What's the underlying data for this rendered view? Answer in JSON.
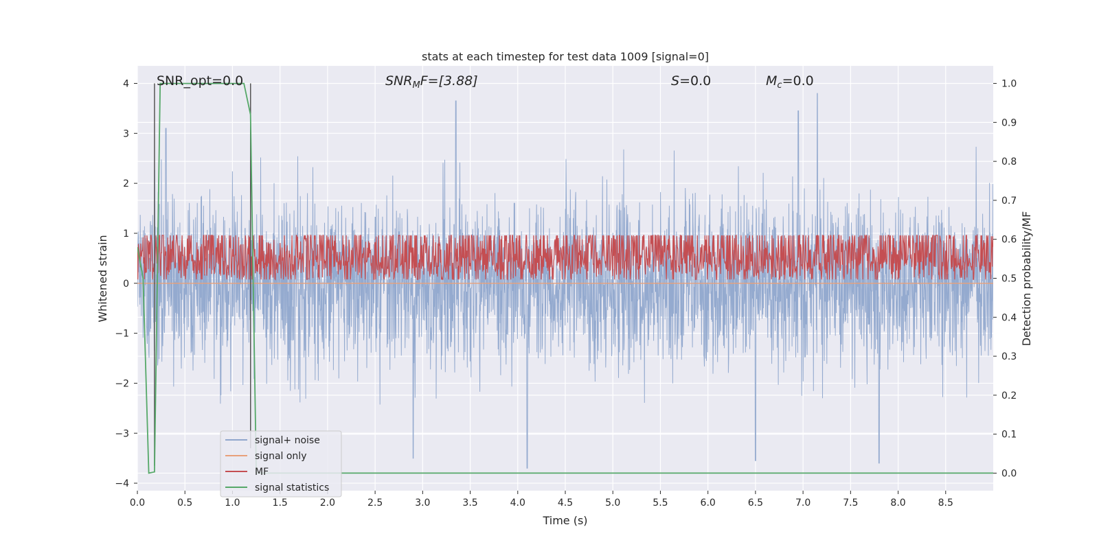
{
  "chart_data": {
    "type": "line",
    "title": "stats at each timestep for test data 1009 [signal=0]",
    "xlabel": "Time (s)",
    "ylabel_left": "Whitened strain",
    "ylabel_right": "Detection probability/MF",
    "xlim": [
      0.0,
      9.0
    ],
    "ylim_left": [
      -4.15,
      4.35
    ],
    "ylim_right": [
      -0.045,
      1.045
    ],
    "x_ticks": [
      "0.0",
      "0.5",
      "1.0",
      "1.5",
      "2.0",
      "2.5",
      "3.0",
      "3.5",
      "4.0",
      "4.5",
      "5.0",
      "5.5",
      "6.0",
      "6.5",
      "7.0",
      "7.5",
      "8.0",
      "8.5"
    ],
    "y_left_ticks": [
      "−4",
      "−3",
      "−2",
      "−1",
      "0",
      "1",
      "2",
      "3",
      "4"
    ],
    "y_right_ticks": [
      "0.0",
      "0.1",
      "0.2",
      "0.3",
      "0.4",
      "0.5",
      "0.6",
      "0.7",
      "0.8",
      "0.9",
      "1.0"
    ],
    "grid": true,
    "legend_position": "lower-left",
    "annotations": {
      "snr_opt": "SNR_opt=0.0",
      "snr_mf_base": "SNR",
      "snr_mf_sub": "M",
      "snr_mf_rest": "F=[3.88]",
      "s_base": "S",
      "s_rest": "=0.0",
      "mc_base": "M",
      "mc_sub": "c",
      "mc_rest": "=0.0"
    },
    "series": [
      {
        "name": "signal+ noise",
        "axis": "left",
        "color": "#8fa6cc",
        "style": "noise",
        "sigma": 0.85,
        "peaks": [
          [
            3.35,
            3.65
          ],
          [
            6.95,
            3.45
          ],
          [
            7.15,
            3.8
          ],
          [
            0.3,
            3.1
          ],
          [
            4.1,
            -3.7
          ],
          [
            7.8,
            -3.6
          ],
          [
            6.5,
            -3.55
          ],
          [
            2.9,
            -3.5
          ]
        ]
      },
      {
        "name": "signal only",
        "axis": "left",
        "color": "#e8a07a",
        "values_x": [
          0.0,
          9.0
        ],
        "values_y": [
          0.0,
          0.0
        ]
      },
      {
        "name": "MF",
        "axis": "right",
        "color": "#c44e52",
        "style": "noise",
        "mean": 0.55,
        "spread": 0.06,
        "min": 0.497,
        "max": 0.61
      },
      {
        "name": "signal statistics",
        "axis": "right",
        "color": "#55a868",
        "values_x": [
          0.0,
          0.06,
          0.12,
          0.18,
          0.24,
          0.6,
          1.0,
          1.12,
          1.19,
          1.25,
          9.0
        ],
        "values_y": [
          0.58,
          0.5,
          0.0,
          0.003,
          1.0,
          1.0,
          1.0,
          1.0,
          0.92,
          0.0,
          0.0
        ]
      }
    ],
    "vertical_lines": [
      {
        "x": 0.18,
        "color": "#555555",
        "y_left": [
          -3.65,
          4.0
        ]
      },
      {
        "x": 1.19,
        "color": "#555555",
        "y_left": [
          -3.3,
          4.0
        ]
      }
    ]
  },
  "legend": {
    "items": [
      {
        "label": "signal+ noise",
        "color": "#8fa6cc"
      },
      {
        "label": "signal only",
        "color": "#e8a07a"
      },
      {
        "label": "MF",
        "color": "#c44e52"
      },
      {
        "label": "signal statistics",
        "color": "#55a868"
      }
    ]
  }
}
